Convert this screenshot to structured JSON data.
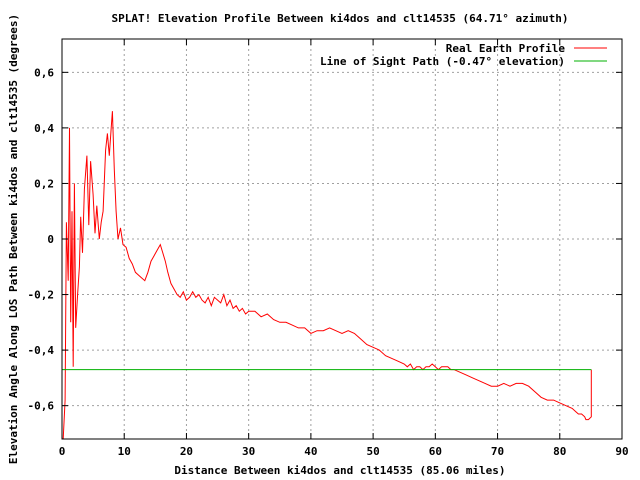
{
  "chart_data": {
    "type": "line",
    "title": "SPLAT! Elevation Profile Between ki4dos and clt14535 (64.71° azimuth)",
    "xlabel": "Distance Between ki4dos and clt14535 (85.06 miles)",
    "ylabel": "Elevation Angle Along LOS Path Between ki4dos and clt14535 (degrees)",
    "xlim": [
      0,
      90
    ],
    "ylim": [
      -0.72,
      0.72
    ],
    "x_ticks": [
      0,
      10,
      20,
      30,
      40,
      50,
      60,
      70,
      80,
      90
    ],
    "y_ticks": [
      -0.6,
      -0.4,
      -0.2,
      0,
      0.2,
      0.4,
      0.6
    ],
    "x_tick_labels": [
      "0",
      "10",
      "20",
      "30",
      "40",
      "50",
      "60",
      "70",
      "80",
      "90"
    ],
    "y_tick_labels": [
      "-0,6",
      "-0,4",
      "-0,2",
      "0",
      "0,2",
      "0,4",
      "0,6"
    ],
    "grid": true,
    "legend_position": "top-right",
    "series": [
      {
        "name": "Real Earth Profile",
        "color": "#ff0000",
        "x": [
          0.2,
          0.5,
          0.7,
          1.0,
          1.2,
          1.4,
          1.6,
          1.8,
          2.0,
          2.2,
          2.5,
          2.8,
          3.0,
          3.3,
          3.6,
          4.0,
          4.3,
          4.6,
          5.0,
          5.3,
          5.6,
          6.0,
          6.3,
          6.6,
          7.0,
          7.3,
          7.6,
          7.9,
          8.1,
          8.4,
          8.7,
          9.0,
          9.4,
          9.8,
          10.3,
          10.8,
          11.3,
          11.8,
          12.3,
          12.8,
          13.3,
          13.8,
          14.3,
          14.8,
          15.3,
          15.8,
          16.2,
          16.6,
          17.0,
          17.5,
          18.0,
          18.5,
          19.0,
          19.5,
          20.0,
          20.5,
          21.0,
          21.5,
          22.0,
          22.5,
          23.0,
          23.5,
          24.0,
          24.5,
          25.0,
          25.5,
          26.0,
          26.5,
          27.0,
          27.5,
          28.0,
          28.5,
          29.0,
          29.5,
          30.0,
          31.0,
          32.0,
          33.0,
          34.0,
          35.0,
          36.0,
          37.0,
          38.0,
          39.0,
          40.0,
          41.0,
          42.0,
          43.0,
          44.0,
          45.0,
          46.0,
          47.0,
          48.0,
          49.0,
          50.0,
          51.0,
          52.0,
          53.0,
          54.0,
          55.0,
          55.5,
          56.0,
          56.5,
          57.0,
          57.5,
          58.0,
          58.5,
          59.0,
          59.5,
          60.0,
          60.5,
          61.0,
          61.5,
          62.0,
          62.5,
          63.0,
          64.0,
          65.0,
          66.0,
          67.0,
          68.0,
          69.0,
          70.0,
          71.0,
          72.0,
          73.0,
          74.0,
          75.0,
          76.0,
          77.0,
          78.0,
          79.0,
          80.0,
          81.0,
          82.0,
          82.5,
          83.0,
          83.5,
          84.0,
          84.2,
          84.6,
          85.06,
          85.06
        ],
        "y": [
          -0.72,
          -0.58,
          0.06,
          -0.15,
          0.4,
          -0.3,
          0.1,
          -0.46,
          0.2,
          -0.32,
          -0.2,
          -0.1,
          0.08,
          -0.05,
          0.18,
          0.3,
          0.05,
          0.28,
          0.16,
          0.02,
          0.12,
          0.0,
          0.06,
          0.1,
          0.32,
          0.38,
          0.3,
          0.4,
          0.46,
          0.25,
          0.1,
          0.0,
          0.04,
          -0.02,
          -0.03,
          -0.07,
          -0.09,
          -0.12,
          -0.13,
          -0.14,
          -0.15,
          -0.12,
          -0.08,
          -0.06,
          -0.04,
          -0.02,
          -0.05,
          -0.08,
          -0.12,
          -0.16,
          -0.18,
          -0.2,
          -0.21,
          -0.19,
          -0.22,
          -0.21,
          -0.19,
          -0.21,
          -0.2,
          -0.22,
          -0.23,
          -0.21,
          -0.24,
          -0.21,
          -0.22,
          -0.23,
          -0.2,
          -0.24,
          -0.22,
          -0.25,
          -0.24,
          -0.26,
          -0.25,
          -0.27,
          -0.26,
          -0.26,
          -0.28,
          -0.27,
          -0.29,
          -0.3,
          -0.3,
          -0.31,
          -0.32,
          -0.32,
          -0.34,
          -0.33,
          -0.33,
          -0.32,
          -0.33,
          -0.34,
          -0.33,
          -0.34,
          -0.36,
          -0.38,
          -0.39,
          -0.4,
          -0.42,
          -0.43,
          -0.44,
          -0.45,
          -0.46,
          -0.45,
          -0.47,
          -0.46,
          -0.46,
          -0.47,
          -0.46,
          -0.46,
          -0.45,
          -0.46,
          -0.47,
          -0.46,
          -0.46,
          -0.46,
          -0.47,
          -0.47,
          -0.48,
          -0.49,
          -0.5,
          -0.51,
          -0.52,
          -0.53,
          -0.53,
          -0.52,
          -0.53,
          -0.52,
          -0.52,
          -0.53,
          -0.55,
          -0.57,
          -0.58,
          -0.58,
          -0.59,
          -0.6,
          -0.61,
          -0.62,
          -0.63,
          -0.63,
          -0.64,
          -0.65,
          -0.65,
          -0.64,
          -0.47
        ]
      },
      {
        "name": "Line of Sight Path (-0.47° elevation)",
        "color": "#00b000",
        "x": [
          0,
          85.06
        ],
        "y": [
          -0.47,
          -0.47
        ]
      }
    ]
  }
}
